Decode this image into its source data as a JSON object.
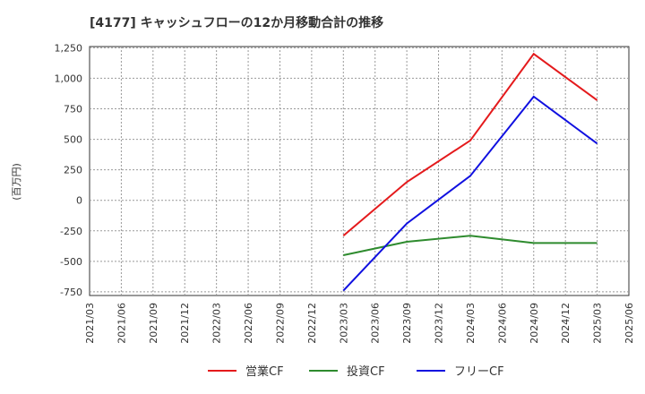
{
  "chart_data": {
    "type": "line",
    "title": "[4177]  キャッシュフローの12か月移動合計の推移",
    "ylabel": "(百万円)",
    "xlabel": "",
    "ylim": [
      -780,
      1260
    ],
    "y_ticks": [
      "1,250",
      "1,000",
      "750",
      "500",
      "250",
      "0",
      "-250",
      "-500",
      "-750"
    ],
    "y_tick_values": [
      1250,
      1000,
      750,
      500,
      250,
      0,
      -250,
      -500,
      -750
    ],
    "categories": [
      "2021/03",
      "2021/06",
      "2021/09",
      "2021/12",
      "2022/03",
      "2022/06",
      "2022/09",
      "2022/12",
      "2023/03",
      "2023/06",
      "2023/09",
      "2023/12",
      "2024/03",
      "2024/06",
      "2024/09",
      "2024/12",
      "2025/03",
      "2025/06"
    ],
    "grid": true,
    "legend_position": "bottom-center",
    "series": [
      {
        "name": "営業CF",
        "color": "#e41a1c",
        "values": [
          null,
          null,
          null,
          null,
          null,
          null,
          null,
          null,
          -290,
          null,
          150,
          null,
          490,
          null,
          1200,
          null,
          820,
          null
        ]
      },
      {
        "name": "投資CF",
        "color": "#2e8b2e",
        "values": [
          null,
          null,
          null,
          null,
          null,
          null,
          null,
          null,
          -450,
          null,
          -340,
          null,
          -290,
          null,
          -350,
          null,
          -350,
          null
        ]
      },
      {
        "name": "フリーCF",
        "color": "#1010e0",
        "values": [
          null,
          null,
          null,
          null,
          null,
          null,
          null,
          null,
          -740,
          null,
          -190,
          null,
          200,
          null,
          850,
          null,
          465,
          null
        ]
      }
    ]
  }
}
